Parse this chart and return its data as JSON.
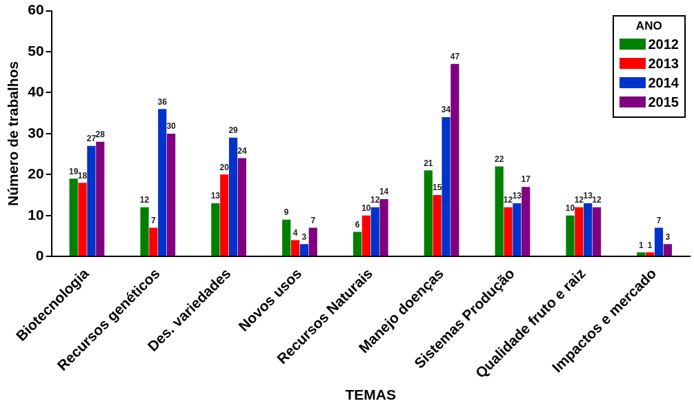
{
  "chart_data": {
    "type": "bar",
    "xlabel": "TEMAS",
    "ylabel": "Número de trabalhos",
    "legend_title": "ANO",
    "categories": [
      "Biotecnologia",
      "Recursos genéticos",
      "Des. variedades",
      "Novos usos",
      "Recursos Naturais",
      "Manejo doenças",
      "Sistemas Produção",
      "Qualidade fruto e raiz",
      "Impactos e mercado"
    ],
    "series": [
      {
        "name": "2012",
        "color": "#008000",
        "values": [
          19,
          12,
          13,
          9,
          6,
          21,
          22,
          10,
          1
        ]
      },
      {
        "name": "2013",
        "color": "#ff0000",
        "values": [
          18,
          7,
          20,
          4,
          10,
          15,
          12,
          12,
          1
        ]
      },
      {
        "name": "2014",
        "color": "#0033cc",
        "values": [
          27,
          36,
          29,
          3,
          12,
          34,
          13,
          13,
          7
        ]
      },
      {
        "name": "2015",
        "color": "#800080",
        "values": [
          28,
          30,
          24,
          7,
          14,
          47,
          17,
          12,
          3
        ]
      }
    ],
    "ylim": [
      0,
      60
    ],
    "yticks": [
      0,
      10,
      20,
      30,
      40,
      50,
      60
    ],
    "grid": false,
    "legend": "top right",
    "data_labels": true
  }
}
